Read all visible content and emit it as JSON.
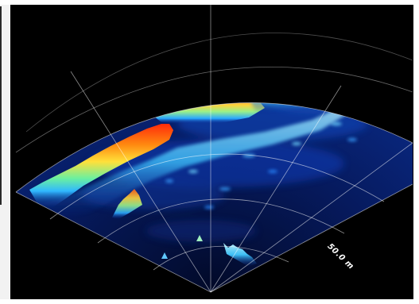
{
  "viewer": {
    "range_label": "50.0 m",
    "colors": {
      "background": "#000000",
      "seabed_low": "#06124a",
      "seabed_mid": "#1a4fd0",
      "echo_high": "#ff3a10",
      "echo_mid": "#ffd23a",
      "echo_cyan": "#40e0ff",
      "grid": "#ffffff"
    },
    "icons": [
      "range-ring-grid",
      "bearing-lines",
      "sonar-return-surface"
    ]
  }
}
